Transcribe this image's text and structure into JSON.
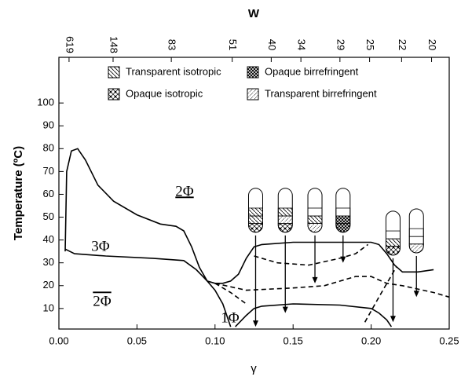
{
  "chart_data": {
    "type": "line",
    "x_label": "γ",
    "y_label": "Temperature (ºC)",
    "top_label": "W",
    "xlim": [
      0,
      0.25
    ],
    "ylim": [
      1,
      120
    ],
    "xticks": [
      {
        "value": 0,
        "label": "0.00"
      },
      {
        "value": 0.05,
        "label": "0.05"
      },
      {
        "value": 0.1,
        "label": "0.10"
      },
      {
        "value": 0.15,
        "label": "0.15"
      },
      {
        "value": 0.2,
        "label": "0.20"
      },
      {
        "value": 0.25,
        "label": "0.25"
      }
    ],
    "yticks": [
      10,
      20,
      30,
      40,
      50,
      60,
      70,
      80,
      90,
      100
    ],
    "top_ticks": [
      {
        "value": 0.0065,
        "label": "619"
      },
      {
        "value": 0.0347,
        "label": "148"
      },
      {
        "value": 0.072,
        "label": "83"
      },
      {
        "value": 0.111,
        "label": "51"
      },
      {
        "value": 0.136,
        "label": "40"
      },
      {
        "value": 0.155,
        "label": "34"
      },
      {
        "value": 0.18,
        "label": "29"
      },
      {
        "value": 0.199,
        "label": "25"
      },
      {
        "value": 0.2195,
        "label": "22"
      },
      {
        "value": 0.2387,
        "label": "20"
      }
    ],
    "legend_labels": [
      "Transparent isotropic",
      "Opaque birrefringent",
      "Opaque isotropic",
      "Transparent birrefringent"
    ],
    "annotations": [
      "2Φ",
      "3Φ",
      "2Φ",
      "1Φ"
    ],
    "series": [
      {
        "color": "#000000",
        "dash": false,
        "x": [
          0.004,
          0.005,
          0.008,
          0.012,
          0.017,
          0.025,
          0.035,
          0.05,
          0.065,
          0.075,
          0.08,
          0.085,
          0.09,
          0.095,
          0.1,
          0.105,
          0.11
        ],
        "values": [
          35,
          70,
          79,
          80,
          75,
          64,
          57,
          51,
          47,
          46,
          44,
          37,
          28,
          22,
          18,
          12,
          2
        ]
      },
      {
        "color": "#000000",
        "dash": false,
        "x": [
          0.004,
          0.01,
          0.03,
          0.06,
          0.08,
          0.088,
          0.095,
          0.1,
          0.105,
          0.11,
          0.115,
          0.12,
          0.125,
          0.13,
          0.15,
          0.18,
          0.2,
          0.205,
          0.21,
          0.215,
          0.22,
          0.23,
          0.24
        ],
        "values": [
          36,
          34,
          33,
          32,
          31,
          27,
          22,
          21,
          21,
          22,
          25,
          32,
          37,
          38,
          39,
          39,
          39,
          38,
          34,
          29,
          26,
          26,
          27
        ]
      },
      {
        "color": "#000000",
        "dash": false,
        "x": [
          0.113,
          0.12,
          0.125,
          0.13,
          0.15,
          0.18,
          0.2,
          0.205,
          0.21,
          0.213
        ],
        "values": [
          2,
          7,
          10,
          11,
          12,
          11.5,
          10,
          8,
          5,
          2
        ]
      },
      {
        "color": "#000000",
        "dash": true,
        "x": [
          0.125,
          0.14,
          0.16,
          0.18,
          0.19,
          0.198
        ],
        "values": [
          33,
          30,
          29,
          32,
          34,
          38
        ]
      },
      {
        "color": "#000000",
        "dash": true,
        "x": [
          0.1,
          0.12,
          0.15,
          0.17,
          0.19,
          0.2,
          0.21,
          0.22,
          0.24,
          0.25
        ],
        "values": [
          21,
          18,
          19,
          20,
          24,
          24,
          21,
          20,
          17,
          15
        ]
      },
      {
        "color": "#000000",
        "dash": true,
        "x": [
          0.1,
          0.11,
          0.12
        ],
        "values": [
          21,
          17,
          12
        ]
      },
      {
        "color": "#000000",
        "dash": true,
        "x": [
          0.196,
          0.205,
          0.216
        ],
        "values": [
          4,
          15,
          28
        ]
      }
    ],
    "arrows": [
      {
        "x": 0.126,
        "from": 42,
        "to": 2
      },
      {
        "x": 0.145,
        "from": 42,
        "to": 8
      },
      {
        "x": 0.164,
        "from": 42,
        "to": 21
      },
      {
        "x": 0.182,
        "from": 42,
        "to": 30
      },
      {
        "x": 0.214,
        "from": 32,
        "to": 4
      },
      {
        "x": 0.229,
        "from": 33,
        "to": 15
      }
    ]
  }
}
